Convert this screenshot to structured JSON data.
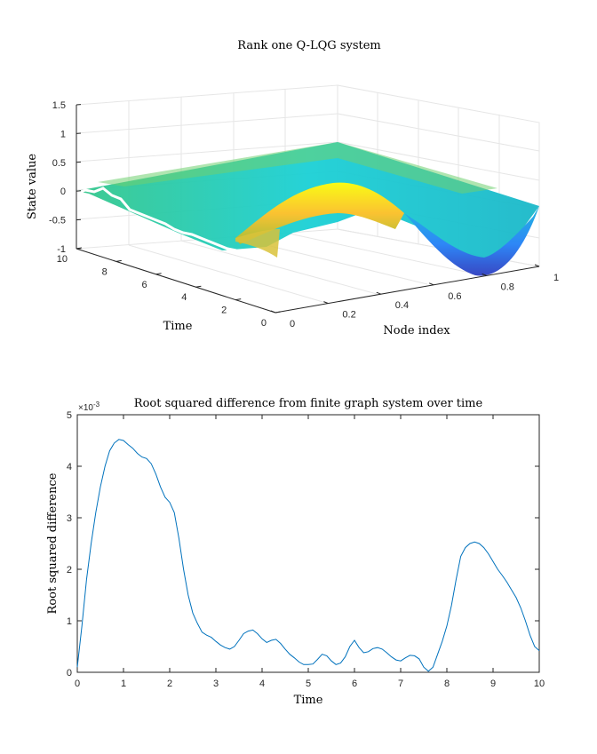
{
  "chart_data": [
    {
      "type": "surface",
      "title": "Rank one Q-LQG system",
      "xlabel": "Node index",
      "ylabel": "Time",
      "zlabel": "State value",
      "xlim": [
        0,
        1
      ],
      "ylim": [
        0,
        10
      ],
      "zlim": [
        -1,
        1.5
      ],
      "x_ticks": [
        "0",
        "0.2",
        "0.4",
        "0.6",
        "0.8",
        "1"
      ],
      "y_ticks": [
        "0",
        "2",
        "4",
        "6",
        "8",
        "10"
      ],
      "z_ticks": [
        "-1",
        "-0.5",
        "0",
        "0.5",
        "1",
        "1.5"
      ],
      "grid": true,
      "colormap": "parula",
      "colormap_stops": [
        "#3e26a8",
        "#2e87f7",
        "#1bd0d5",
        "#35c78a",
        "#a5be3a",
        "#fac231",
        "#f9fb15"
      ],
      "surface_description_values": {
        "t0_profile": [
          0.0,
          0.15,
          0.55,
          0.9,
          0.45,
          -0.4,
          -0.95,
          -0.55,
          -0.3,
          -0.25
        ],
        "t10_profile": [
          0.0,
          0.02,
          0.05,
          0.08,
          0.1,
          0.12,
          0.15,
          0.18,
          0.25,
          0.3
        ]
      }
    },
    {
      "type": "line",
      "title": "Root squared difference from finite graph system over time",
      "xlabel": "Time",
      "ylabel": "Root squared difference",
      "exponent_label": "×10",
      "exponent_power": "-3",
      "xlim": [
        0,
        10
      ],
      "ylim": [
        0,
        5
      ],
      "x_ticks": [
        "0",
        "1",
        "2",
        "3",
        "4",
        "5",
        "6",
        "7",
        "8",
        "9",
        "10"
      ],
      "y_ticks": [
        "0",
        "1",
        "2",
        "3",
        "4",
        "5"
      ],
      "grid": false,
      "line_color": "#0072bd",
      "series": [
        {
          "x": [
            0,
            0.1,
            0.2,
            0.3,
            0.4,
            0.5,
            0.6,
            0.7,
            0.8,
            0.9,
            1.0,
            1.1,
            1.2,
            1.3,
            1.4,
            1.5,
            1.6,
            1.7,
            1.8,
            1.9,
            2.0,
            2.1,
            2.2,
            2.3,
            2.4,
            2.5,
            2.6,
            2.7,
            2.8,
            2.9,
            3.0,
            3.1,
            3.2,
            3.3,
            3.4,
            3.5,
            3.6,
            3.7,
            3.8,
            3.9,
            4.0,
            4.1,
            4.2,
            4.3,
            4.4,
            4.5,
            4.6,
            4.7,
            4.8,
            4.9,
            5.0,
            5.1,
            5.2,
            5.3,
            5.4,
            5.5,
            5.6,
            5.7,
            5.8,
            5.9,
            6.0,
            6.1,
            6.2,
            6.3,
            6.4,
            6.5,
            6.6,
            6.7,
            6.8,
            6.9,
            7.0,
            7.1,
            7.2,
            7.3,
            7.4,
            7.5,
            7.6,
            7.7,
            7.8,
            7.9,
            8.0,
            8.1,
            8.2,
            8.3,
            8.4,
            8.5,
            8.6,
            8.7,
            8.8,
            8.9,
            9.0,
            9.1,
            9.2,
            9.3,
            9.4,
            9.5,
            9.6,
            9.7,
            9.8,
            9.9,
            10.0
          ],
          "y": [
            0.1,
            0.9,
            1.8,
            2.5,
            3.1,
            3.6,
            4.0,
            4.3,
            4.45,
            4.52,
            4.5,
            4.42,
            4.35,
            4.25,
            4.18,
            4.15,
            4.05,
            3.85,
            3.6,
            3.4,
            3.3,
            3.1,
            2.6,
            2.0,
            1.5,
            1.15,
            0.95,
            0.78,
            0.72,
            0.68,
            0.6,
            0.53,
            0.48,
            0.45,
            0.5,
            0.62,
            0.75,
            0.8,
            0.82,
            0.75,
            0.65,
            0.58,
            0.62,
            0.64,
            0.56,
            0.45,
            0.35,
            0.28,
            0.2,
            0.15,
            0.15,
            0.16,
            0.25,
            0.35,
            0.32,
            0.22,
            0.15,
            0.18,
            0.3,
            0.5,
            0.62,
            0.48,
            0.38,
            0.4,
            0.46,
            0.48,
            0.45,
            0.38,
            0.3,
            0.24,
            0.22,
            0.28,
            0.33,
            0.32,
            0.26,
            0.1,
            0.02,
            0.1,
            0.35,
            0.6,
            0.9,
            1.3,
            1.8,
            2.25,
            2.42,
            2.5,
            2.53,
            2.5,
            2.42,
            2.3,
            2.15,
            2.0,
            1.88,
            1.75,
            1.6,
            1.45,
            1.25,
            1.0,
            0.72,
            0.5,
            0.42
          ]
        }
      ]
    }
  ]
}
